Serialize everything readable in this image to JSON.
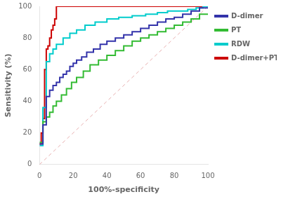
{
  "chart_data": {
    "type": "line",
    "title": "",
    "xlabel": "100%-specificity",
    "ylabel": "Sensitivity (%)",
    "xlim": [
      0,
      100
    ],
    "ylim": [
      0,
      100
    ],
    "xticks": [
      0,
      20,
      40,
      60,
      80,
      100
    ],
    "yticks": [
      0,
      20,
      40,
      60,
      80,
      100
    ],
    "grid": false,
    "legend": "right",
    "diagonal": {
      "x": [
        0,
        100
      ],
      "y": [
        0,
        100
      ],
      "color": "#e8b0b0",
      "line_style": "dashed"
    },
    "series": [
      {
        "name": "D-dimer",
        "color": "#3333aa",
        "x": [
          0,
          2,
          2,
          4,
          4,
          6,
          6,
          8,
          8,
          10,
          10,
          12,
          12,
          14,
          14,
          16,
          16,
          18,
          18,
          20,
          20,
          22,
          22,
          25,
          25,
          28,
          28,
          32,
          32,
          36,
          36,
          40,
          40,
          45,
          45,
          50,
          50,
          55,
          55,
          60,
          60,
          65,
          65,
          70,
          70,
          75,
          75,
          80,
          80,
          85,
          85,
          90,
          90,
          95,
          95,
          100
        ],
        "values": [
          13,
          13,
          25,
          25,
          43,
          43,
          47,
          47,
          50,
          50,
          52,
          52,
          55,
          55,
          57,
          57,
          59,
          59,
          62,
          62,
          64,
          64,
          66,
          66,
          68,
          68,
          71,
          71,
          73,
          73,
          76,
          76,
          78,
          78,
          80,
          80,
          82,
          82,
          84,
          84,
          86,
          86,
          88,
          88,
          90,
          90,
          92,
          92,
          93,
          93,
          95,
          95,
          97,
          97,
          99,
          99
        ]
      },
      {
        "name": "PT",
        "color": "#33bb33",
        "x": [
          0,
          2,
          2,
          4,
          4,
          6,
          6,
          8,
          8,
          10,
          10,
          13,
          13,
          16,
          16,
          19,
          19,
          22,
          22,
          26,
          26,
          30,
          30,
          35,
          35,
          40,
          40,
          45,
          45,
          50,
          50,
          55,
          55,
          60,
          60,
          65,
          65,
          70,
          70,
          75,
          75,
          80,
          80,
          85,
          85,
          90,
          90,
          95,
          95,
          100
        ],
        "values": [
          14,
          14,
          27,
          27,
          30,
          30,
          33,
          33,
          37,
          37,
          40,
          40,
          44,
          44,
          48,
          48,
          52,
          52,
          55,
          55,
          59,
          59,
          63,
          63,
          66,
          66,
          69,
          69,
          72,
          72,
          75,
          75,
          78,
          78,
          80,
          80,
          82,
          82,
          84,
          84,
          86,
          86,
          88,
          88,
          90,
          90,
          92,
          92,
          95,
          95
        ]
      },
      {
        "name": "RDW",
        "color": "#00cccc",
        "x": [
          0,
          2,
          2,
          4,
          4,
          6,
          6,
          8,
          8,
          10,
          10,
          14,
          14,
          18,
          18,
          22,
          22,
          27,
          27,
          33,
          33,
          40,
          40,
          47,
          47,
          55,
          55,
          63,
          63,
          70,
          70,
          76,
          76,
          82,
          82,
          88,
          88,
          93,
          93,
          97,
          97,
          100
        ],
        "values": [
          12,
          12,
          36,
          36,
          65,
          65,
          70,
          70,
          73,
          73,
          76,
          76,
          80,
          80,
          83,
          83,
          85,
          85,
          88,
          88,
          90,
          90,
          92,
          92,
          93,
          93,
          94,
          94,
          95,
          95,
          96,
          96,
          97,
          97,
          97,
          97,
          98,
          98,
          99,
          99,
          100,
          100
        ]
      },
      {
        "name": "D-dimer+PT+RDW",
        "color": "#cc0000",
        "x": [
          0,
          1,
          1,
          2,
          2,
          3,
          3,
          4,
          4,
          5,
          5,
          6,
          6,
          7,
          7,
          8,
          8,
          9,
          9,
          10,
          10,
          12,
          12,
          15,
          15,
          20,
          20,
          30,
          30,
          100
        ],
        "values": [
          13,
          13,
          20,
          20,
          29,
          29,
          60,
          60,
          73,
          73,
          75,
          75,
          80,
          80,
          85,
          85,
          88,
          88,
          92,
          92,
          100,
          100,
          100,
          100,
          100,
          100,
          100,
          100,
          100,
          100
        ]
      }
    ]
  }
}
